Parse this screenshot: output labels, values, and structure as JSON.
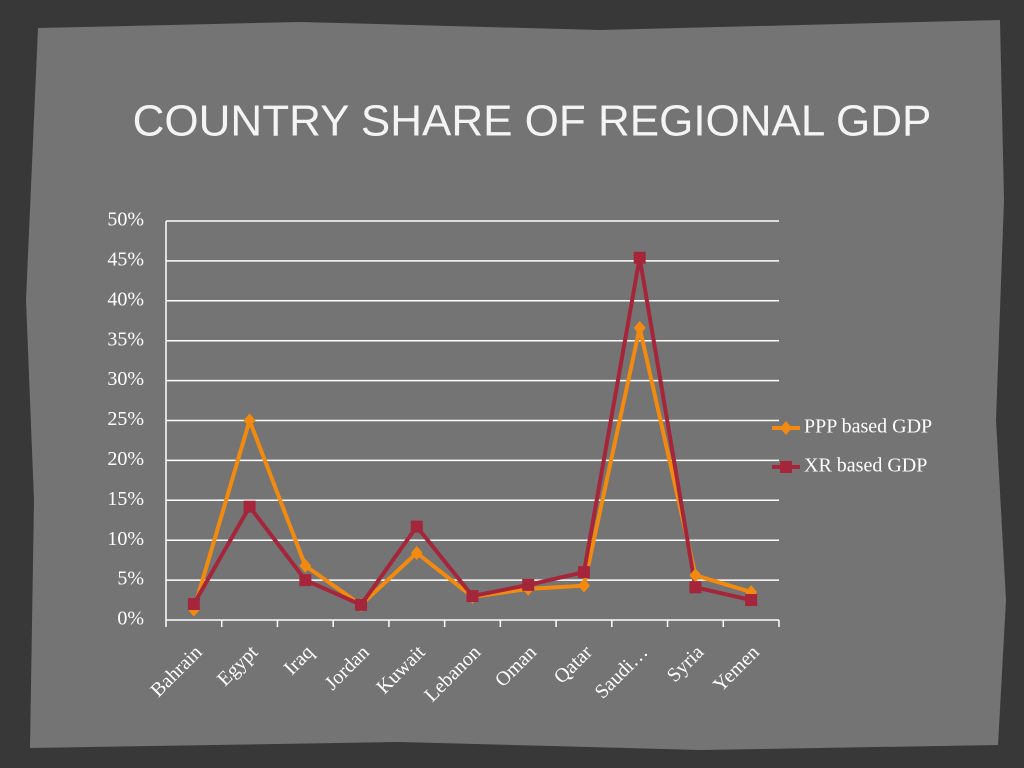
{
  "chart_data": {
    "type": "line",
    "title": "COUNTRY SHARE OF REGIONAL GDP",
    "categories": [
      "Bahrain",
      "Egypt",
      "Iraq",
      "Jordan",
      "Kuwait",
      "Lebanon",
      "Oman",
      "Qatar",
      "Saudi…",
      "Syria",
      "Yemen"
    ],
    "series": [
      {
        "name": "PPP based GDP",
        "color": "#f28a0f",
        "values": [
          1.3,
          25.0,
          6.8,
          1.9,
          8.4,
          2.9,
          3.9,
          4.3,
          36.6,
          5.6,
          3.5
        ]
      },
      {
        "name": "XR based GDP",
        "color": "#a5263a",
        "values": [
          2.0,
          14.2,
          5.0,
          1.9,
          11.7,
          3.0,
          4.4,
          6.0,
          45.4,
          4.1,
          2.5
        ]
      }
    ],
    "ylim": [
      0,
      50
    ],
    "yticks": [
      {
        "value": 0,
        "label": "0%"
      },
      {
        "value": 5,
        "label": "5%"
      },
      {
        "value": 10,
        "label": "10%"
      },
      {
        "value": 15,
        "label": "15%"
      },
      {
        "value": 20,
        "label": "20%"
      },
      {
        "value": 25,
        "label": "25%"
      },
      {
        "value": 30,
        "label": "30%"
      },
      {
        "value": 35,
        "label": "35%"
      },
      {
        "value": 40,
        "label": "40%"
      },
      {
        "value": 45,
        "label": "45%"
      },
      {
        "value": 50,
        "label": "50%"
      }
    ],
    "grid": true,
    "legend": "right"
  }
}
